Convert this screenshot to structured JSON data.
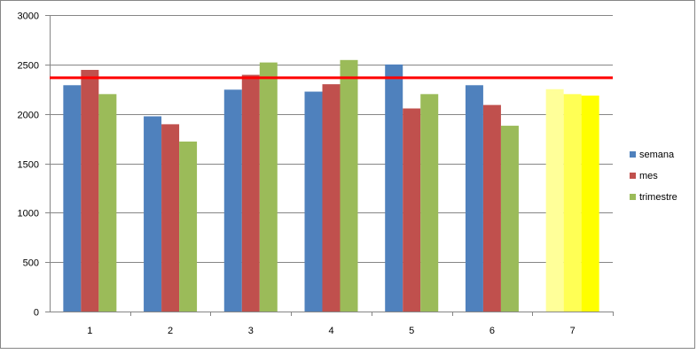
{
  "chart_data": {
    "type": "bar",
    "title": "",
    "xlabel": "",
    "ylabel": "",
    "ylim": [
      0,
      3000
    ],
    "yticks": [
      0,
      500,
      1000,
      1500,
      2000,
      2500,
      3000
    ],
    "grid": true,
    "legend_position": "right",
    "categories": [
      "1",
      "2",
      "3",
      "4",
      "5",
      "6",
      "7"
    ],
    "series": [
      {
        "name": "semana",
        "color": "#4F81BD",
        "values": [
          2290,
          1975,
          2245,
          2225,
          2500,
          2290,
          2250
        ]
      },
      {
        "name": "mes",
        "color": "#C0504D",
        "values": [
          2445,
          1895,
          2395,
          2300,
          2055,
          2090,
          2200
        ]
      },
      {
        "name": "trimestre",
        "color": "#9BBB59",
        "values": [
          2200,
          1720,
          2520,
          2545,
          2200,
          1880,
          2185
        ]
      }
    ],
    "highlight": {
      "category": "7",
      "colors": [
        "#FFFF99",
        "#FFFF55",
        "#FFFF00"
      ]
    },
    "reference_line": {
      "value": 2365,
      "color": "#FF0000"
    }
  }
}
